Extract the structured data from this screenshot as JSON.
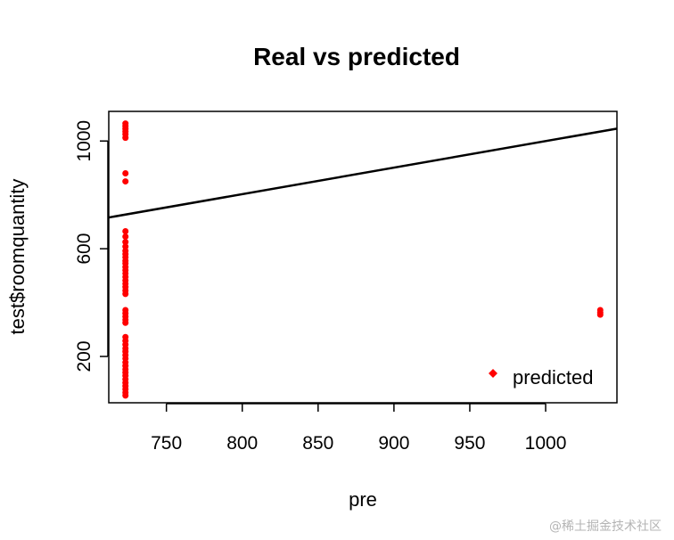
{
  "chart_data": {
    "type": "scatter",
    "title": "Real vs predicted",
    "xlabel": "pre",
    "ylabel": "test$roomquantity",
    "xlim": [
      712,
      1047
    ],
    "ylim": [
      28,
      1110
    ],
    "xticks": [
      750,
      800,
      850,
      900,
      950,
      1000
    ],
    "yticks": [
      200,
      600,
      1000
    ],
    "point_color": "#ff0000",
    "line_color": "#000000",
    "grid": false,
    "legend": {
      "position": "bottom-right",
      "entries": [
        "predicted"
      ]
    },
    "series": [
      {
        "name": "predicted",
        "points": [
          [
            723,
            1065
          ],
          [
            723,
            1055
          ],
          [
            723,
            1045
          ],
          [
            723,
            1035
          ],
          [
            723,
            1025
          ],
          [
            723,
            1012
          ],
          [
            723,
            880
          ],
          [
            723,
            850
          ],
          [
            723,
            665
          ],
          [
            723,
            645
          ],
          [
            723,
            625
          ],
          [
            723,
            608
          ],
          [
            723,
            592
          ],
          [
            723,
            580
          ],
          [
            723,
            568
          ],
          [
            723,
            555
          ],
          [
            723,
            545
          ],
          [
            723,
            532
          ],
          [
            723,
            520
          ],
          [
            723,
            508
          ],
          [
            723,
            495
          ],
          [
            723,
            482
          ],
          [
            723,
            470
          ],
          [
            723,
            458
          ],
          [
            723,
            445
          ],
          [
            723,
            432
          ],
          [
            723,
            372
          ],
          [
            723,
            360
          ],
          [
            723,
            348
          ],
          [
            723,
            336
          ],
          [
            723,
            325
          ],
          [
            723,
            272
          ],
          [
            723,
            258
          ],
          [
            723,
            244
          ],
          [
            723,
            230
          ],
          [
            723,
            218
          ],
          [
            723,
            205
          ],
          [
            723,
            192
          ],
          [
            723,
            178
          ],
          [
            723,
            165
          ],
          [
            723,
            152
          ],
          [
            723,
            140
          ],
          [
            723,
            128
          ],
          [
            723,
            115
          ],
          [
            723,
            102
          ],
          [
            723,
            90
          ],
          [
            723,
            78
          ],
          [
            723,
            66
          ],
          [
            723,
            55
          ],
          [
            1036,
            372
          ],
          [
            1036,
            362
          ],
          [
            1036,
            355
          ]
        ]
      }
    ],
    "abline": {
      "x": [
        712,
        1047
      ],
      "y": [
        716,
        1046
      ]
    }
  },
  "watermark": "@稀土掘金技术社区"
}
